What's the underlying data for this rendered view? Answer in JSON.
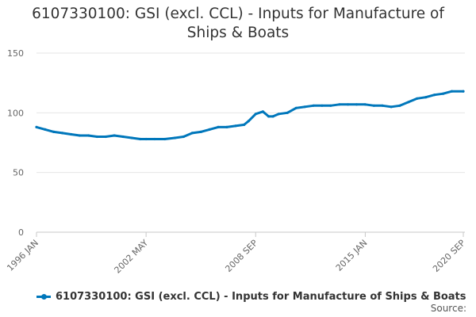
{
  "chart_data": {
    "type": "line",
    "title": "6107330100: GSI (excl. CCL) - Inputs for Manufacture of Ships & Boats",
    "title_lines": [
      "6107330100: GSI (excl. CCL) - Inputs for Manufacture of",
      "Ships & Boats"
    ],
    "xlabel": "",
    "ylabel": "",
    "ylim": [
      0,
      150
    ],
    "y_ticks": [
      "0",
      "50",
      "100",
      "150"
    ],
    "x_tick_labels": [
      "1996 JAN",
      "2002 MAY",
      "2008 SEP",
      "2015 JAN",
      "2020 SEP"
    ],
    "grid": "horizontal",
    "legend_position": "bottom",
    "color": "#0077bb",
    "series": [
      {
        "name": "6107330100: GSI (excl. CCL) - Inputs for Manufacture of Ships & Boats",
        "x": [
          "1996-01",
          "1996-07",
          "1997-01",
          "1997-07",
          "1998-01",
          "1998-07",
          "1999-01",
          "1999-07",
          "2000-01",
          "2000-07",
          "2001-01",
          "2001-07",
          "2002-01",
          "2002-05",
          "2002-11",
          "2003-06",
          "2004-01",
          "2004-07",
          "2005-01",
          "2005-07",
          "2006-01",
          "2006-07",
          "2007-01",
          "2007-07",
          "2008-01",
          "2008-04",
          "2008-09",
          "2009-02",
          "2009-06",
          "2009-09",
          "2010-01",
          "2010-07",
          "2011-01",
          "2011-07",
          "2012-01",
          "2012-07",
          "2013-01",
          "2013-07",
          "2014-01",
          "2014-07",
          "2015-01",
          "2015-07",
          "2016-01",
          "2016-07",
          "2017-01",
          "2017-07",
          "2018-01",
          "2018-07",
          "2019-01",
          "2019-07",
          "2020-01",
          "2020-09"
        ],
        "values": [
          88,
          86,
          84,
          83,
          82,
          81,
          81,
          80,
          80,
          81,
          80,
          79,
          78,
          78,
          78,
          78,
          79,
          80,
          83,
          84,
          86,
          88,
          88,
          89,
          90,
          93,
          99,
          101,
          97,
          97,
          99,
          100,
          104,
          105,
          106,
          106,
          106,
          107,
          107,
          107,
          107,
          106,
          106,
          105,
          106,
          109,
          112,
          113,
          115,
          116,
          118,
          118
        ]
      }
    ]
  },
  "source_label": "Source:"
}
